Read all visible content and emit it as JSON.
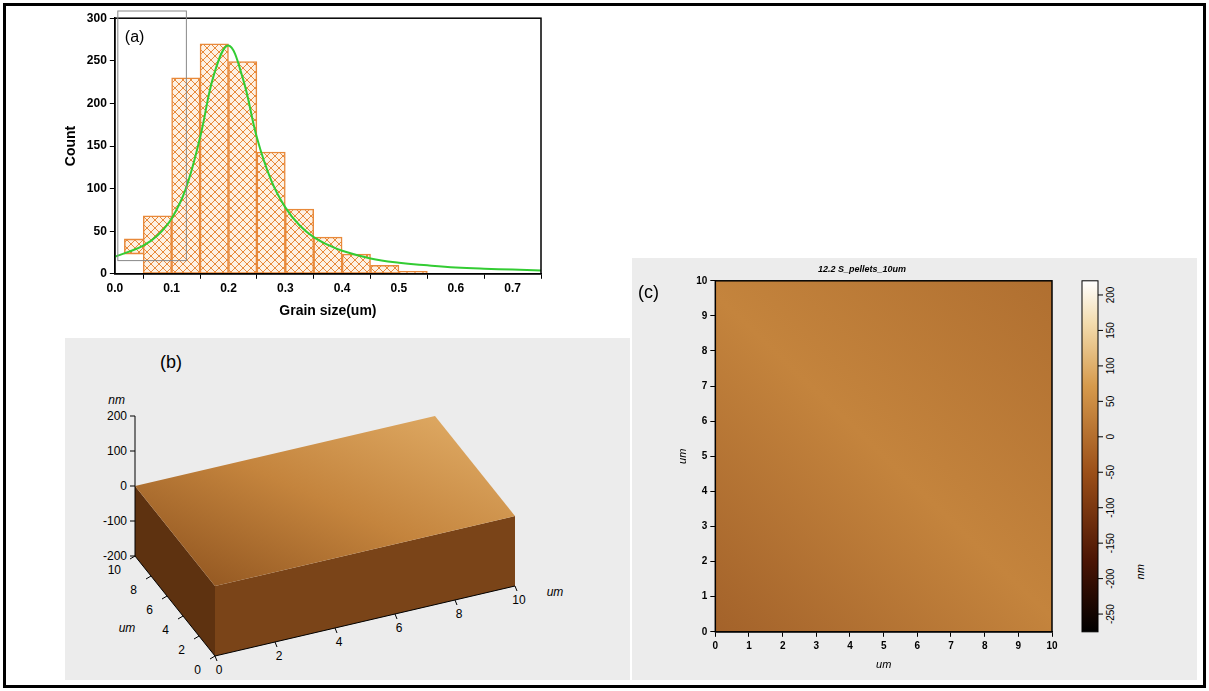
{
  "chart_data": [
    {
      "type": "histogram",
      "panel_label": "(a)",
      "x_label": "Grain size(um)",
      "y_label": "Count",
      "bins": [
        0.05,
        0.1,
        0.15,
        0.2,
        0.25,
        0.3,
        0.35,
        0.4,
        0.45,
        0.5,
        0.55
      ],
      "series": [
        {
          "name": "um",
          "type": "bar",
          "color": "#e8893a",
          "values": [
            68,
            230,
            270,
            249,
            143,
            76,
            43,
            23,
            10,
            3
          ]
        },
        {
          "type": "line",
          "color": "#33cc33",
          "x": [
            0,
            0.025,
            0.05,
            0.075,
            0.1,
            0.125,
            0.15,
            0.175,
            0.2,
            0.225,
            0.25,
            0.275,
            0.3,
            0.325,
            0.35,
            0.375,
            0.4,
            0.45,
            0.5,
            0.55,
            0.6,
            0.65,
            0.7,
            0.75
          ],
          "values": [
            20,
            26,
            33,
            45,
            65,
            100,
            160,
            235,
            268,
            230,
            160,
            110,
            78,
            57,
            43,
            34,
            27,
            18,
            13,
            10,
            7.5,
            6,
            5,
            4
          ]
        }
      ],
      "xlim": [
        0,
        0.75
      ],
      "xticks": [
        {
          "value": 0,
          "label": "0.0"
        },
        0.1,
        0.2,
        0.3,
        0.4,
        0.5,
        0.6,
        0.7
      ],
      "ylim": [
        0,
        300
      ],
      "yticks": [
        0,
        50,
        100,
        150,
        200,
        250,
        300
      ],
      "grid": false,
      "legend": "upper right"
    },
    {
      "type": "surface3d",
      "panel_label": "(b)",
      "x_label": "um",
      "y_label": "um",
      "z_label": "nm",
      "xlim": [
        0,
        10
      ],
      "xticks": [
        0,
        2,
        4,
        6,
        8,
        10
      ],
      "ylim": [
        0,
        10
      ],
      "yticks": [
        0,
        2,
        4,
        6,
        8,
        10
      ],
      "zlim": [
        -200,
        200
      ],
      "zticks": [
        -200,
        -100,
        0,
        100,
        200
      ]
    },
    {
      "type": "image",
      "panel_label": "(c)",
      "title": "12.2 S_pellets_10um",
      "x_label": "um",
      "y_label": "um",
      "xlim": [
        0,
        10
      ],
      "xticks": [
        0,
        1,
        2,
        3,
        4,
        5,
        6,
        7,
        8,
        9,
        10
      ],
      "ylim": [
        0,
        10
      ],
      "yticks": [
        0,
        1,
        2,
        3,
        4,
        5,
        6,
        7,
        8,
        9,
        10
      ],
      "grid": false,
      "colorbar": {
        "label": "nm",
        "range": [
          -275,
          220
        ],
        "ticks": [
          -250,
          -200,
          -150,
          -100,
          -50,
          0,
          50,
          100,
          150,
          200
        ]
      }
    }
  ]
}
